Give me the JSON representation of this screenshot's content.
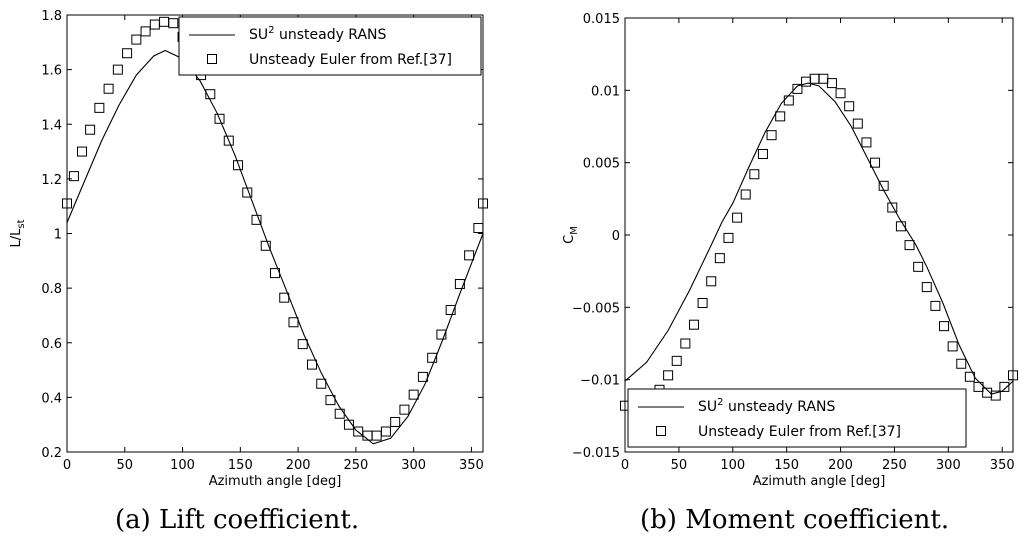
{
  "captions": {
    "a": "(a) Lift coefficient.",
    "b": "(b) Moment coefficient."
  },
  "chart_data": [
    {
      "type": "line",
      "xlabel": "Azimuth angle [deg]",
      "ylabel_main": "L/L",
      "ylabel_sub": "st",
      "xlim": [
        0,
        360
      ],
      "ylim": [
        0.2,
        1.8
      ],
      "xticks": [
        0,
        50,
        100,
        150,
        200,
        250,
        300,
        350
      ],
      "yticks": [
        0.2,
        0.4,
        0.6,
        0.8,
        1,
        1.2,
        1.4,
        1.6,
        1.8
      ],
      "legend_position": "top-right",
      "series": [
        {
          "name_main": "SU",
          "name_sup": "2",
          "name_rest": " unsteady RANS",
          "style": "line",
          "x": [
            0,
            15,
            30,
            45,
            60,
            75,
            85,
            100,
            115,
            130,
            145,
            160,
            175,
            190,
            205,
            220,
            235,
            250,
            265,
            280,
            295,
            310,
            325,
            340,
            360
          ],
          "y": [
            1.04,
            1.19,
            1.34,
            1.47,
            1.58,
            1.65,
            1.67,
            1.64,
            1.56,
            1.44,
            1.29,
            1.12,
            0.95,
            0.79,
            0.63,
            0.49,
            0.37,
            0.28,
            0.23,
            0.25,
            0.33,
            0.45,
            0.61,
            0.78,
            1.0
          ]
        },
        {
          "name": "Unsteady Euler from Ref.[37]",
          "style": "marker",
          "marker": "open-square",
          "x": [
            0,
            6,
            13,
            20,
            28,
            36,
            44,
            52,
            60,
            68,
            76,
            84,
            92,
            100,
            108,
            116,
            124,
            132,
            140,
            148,
            156,
            164,
            172,
            180,
            188,
            196,
            204,
            212,
            220,
            228,
            236,
            244,
            252,
            260,
            268,
            276,
            284,
            292,
            300,
            308,
            316,
            324,
            332,
            340,
            348,
            356,
            360
          ],
          "y": [
            1.11,
            1.21,
            1.3,
            1.38,
            1.46,
            1.53,
            1.6,
            1.66,
            1.71,
            1.74,
            1.765,
            1.775,
            1.77,
            1.72,
            1.65,
            1.58,
            1.51,
            1.42,
            1.34,
            1.25,
            1.15,
            1.05,
            0.955,
            0.855,
            0.765,
            0.675,
            0.595,
            0.52,
            0.45,
            0.39,
            0.34,
            0.3,
            0.275,
            0.26,
            0.26,
            0.275,
            0.31,
            0.355,
            0.41,
            0.475,
            0.545,
            0.63,
            0.72,
            0.815,
            0.92,
            1.02,
            1.11
          ]
        }
      ]
    },
    {
      "type": "line",
      "xlabel": "Azimuth angle [deg]",
      "ylabel_main": "C",
      "ylabel_sub": "M",
      "xlim": [
        0,
        360
      ],
      "ylim": [
        -0.015,
        0.015
      ],
      "xticks": [
        0,
        50,
        100,
        150,
        200,
        250,
        300,
        350
      ],
      "yticks": [
        -0.015,
        -0.01,
        -0.005,
        0,
        0.005,
        0.01,
        0.015
      ],
      "ytick_labels": [
        "−0.015",
        "−0.01",
        "−0.005",
        "0",
        "0.005",
        "0.01",
        "0.015"
      ],
      "legend_position": "bottom-right",
      "series": [
        {
          "name_main": "SU",
          "name_sup": "2",
          "name_rest": " unsteady RANS",
          "style": "line",
          "x": [
            0,
            20,
            40,
            60,
            80,
            90,
            100,
            115,
            130,
            145,
            160,
            170,
            180,
            195,
            210,
            225,
            240,
            255,
            270,
            280,
            295,
            310,
            325,
            340,
            350,
            360
          ],
          "y": [
            -0.0101,
            -0.0088,
            -0.0066,
            -0.0038,
            -0.0007,
            0.0009,
            0.0022,
            0.0047,
            0.0071,
            0.0091,
            0.0103,
            0.0105,
            0.0103,
            0.0092,
            0.0075,
            0.0053,
            0.0031,
            0.0011,
            -0.0007,
            -0.0022,
            -0.0047,
            -0.0076,
            -0.0099,
            -0.011,
            -0.0108,
            -0.0101
          ]
        },
        {
          "name": "Unsteady Euler from Ref.[37]",
          "style": "marker",
          "marker": "open-square",
          "x": [
            0,
            8,
            16,
            24,
            32,
            40,
            48,
            56,
            64,
            72,
            80,
            88,
            96,
            104,
            112,
            120,
            128,
            136,
            144,
            152,
            160,
            168,
            176,
            184,
            192,
            200,
            208,
            216,
            224,
            232,
            240,
            248,
            256,
            264,
            272,
            280,
            288,
            296,
            304,
            312,
            320,
            328,
            336,
            344,
            352,
            360
          ],
          "y": [
            -0.0118,
            -0.0119,
            -0.0117,
            -0.0114,
            -0.0107,
            -0.0097,
            -0.0087,
            -0.0075,
            -0.0062,
            -0.0047,
            -0.0032,
            -0.0016,
            -0.0002,
            0.0012,
            0.0028,
            0.0042,
            0.0056,
            0.0069,
            0.0082,
            0.0093,
            0.0101,
            0.0106,
            0.0108,
            0.0108,
            0.0105,
            0.0098,
            0.0089,
            0.0077,
            0.0064,
            0.005,
            0.0034,
            0.0019,
            0.0006,
            -0.0007,
            -0.0022,
            -0.0036,
            -0.0049,
            -0.0063,
            -0.0077,
            -0.0089,
            -0.0098,
            -0.0105,
            -0.0109,
            -0.0111,
            -0.0105,
            -0.0097
          ]
        }
      ]
    }
  ]
}
